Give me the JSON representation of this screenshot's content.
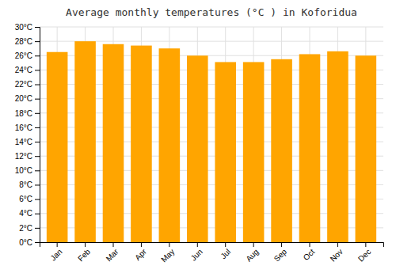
{
  "chart_data": {
    "type": "bar",
    "title": "Average monthly temperatures (°C ) in Koforidua",
    "categories": [
      "Jan",
      "Feb",
      "Mar",
      "Apr",
      "May",
      "Jun",
      "Jul",
      "Aug",
      "Sep",
      "Oct",
      "Nov",
      "Dec"
    ],
    "values": [
      26.5,
      28.0,
      27.6,
      27.4,
      27.0,
      26.0,
      25.1,
      25.1,
      25.5,
      26.2,
      26.6,
      26.0
    ],
    "color": "#ffa500",
    "ylim": [
      0,
      30
    ],
    "yticks": [
      {
        "value": 0,
        "label": "0°C"
      },
      {
        "value": 2,
        "label": "2°C"
      },
      {
        "value": 4,
        "label": "4°C"
      },
      {
        "value": 6,
        "label": "6°C"
      },
      {
        "value": 8,
        "label": "8°C"
      },
      {
        "value": 10,
        "label": "10°C"
      },
      {
        "value": 12,
        "label": "12°C"
      },
      {
        "value": 14,
        "label": "14°C"
      },
      {
        "value": 16,
        "label": "16°C"
      },
      {
        "value": 18,
        "label": "18°C"
      },
      {
        "value": 20,
        "label": "20°C"
      },
      {
        "value": 22,
        "label": "22°C"
      },
      {
        "value": 24,
        "label": "24°C"
      },
      {
        "value": 26,
        "label": "26°C"
      },
      {
        "value": 28,
        "label": "28°C"
      },
      {
        "value": 30,
        "label": "30°C"
      }
    ],
    "grid": true
  }
}
